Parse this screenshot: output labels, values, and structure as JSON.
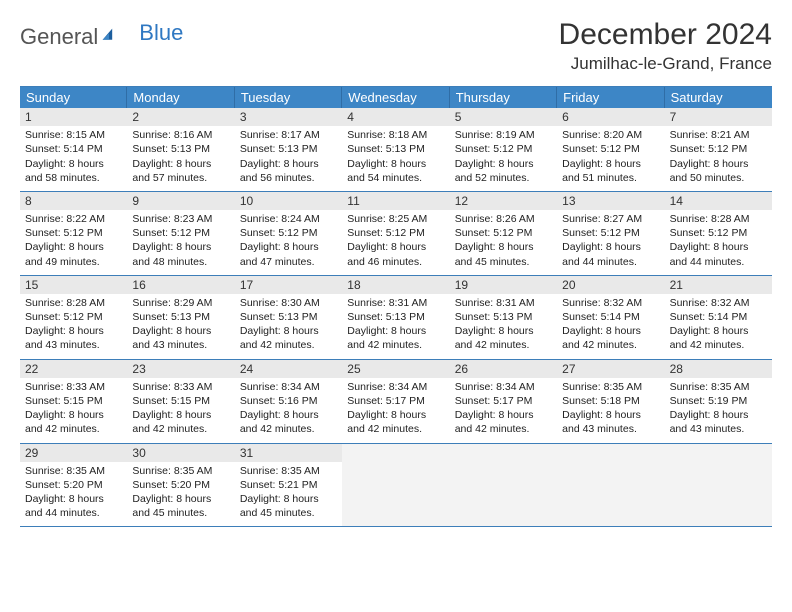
{
  "brand": {
    "part1": "General",
    "part2": "Blue"
  },
  "title": "December 2024",
  "location": "Jumilhac-le-Grand, France",
  "colors": {
    "header_bg": "#3d86c6",
    "border": "#3d7eb9",
    "daynum_bg": "#e9e9e9",
    "logo_blue": "#2f78c2",
    "text": "#222222"
  },
  "dow": [
    "Sunday",
    "Monday",
    "Tuesday",
    "Wednesday",
    "Thursday",
    "Friday",
    "Saturday"
  ],
  "weeks": [
    [
      {
        "n": "1",
        "sr": "8:15 AM",
        "ss": "5:14 PM",
        "dh": "8",
        "dm": "58"
      },
      {
        "n": "2",
        "sr": "8:16 AM",
        "ss": "5:13 PM",
        "dh": "8",
        "dm": "57"
      },
      {
        "n": "3",
        "sr": "8:17 AM",
        "ss": "5:13 PM",
        "dh": "8",
        "dm": "56"
      },
      {
        "n": "4",
        "sr": "8:18 AM",
        "ss": "5:13 PM",
        "dh": "8",
        "dm": "54"
      },
      {
        "n": "5",
        "sr": "8:19 AM",
        "ss": "5:12 PM",
        "dh": "8",
        "dm": "52"
      },
      {
        "n": "6",
        "sr": "8:20 AM",
        "ss": "5:12 PM",
        "dh": "8",
        "dm": "51"
      },
      {
        "n": "7",
        "sr": "8:21 AM",
        "ss": "5:12 PM",
        "dh": "8",
        "dm": "50"
      }
    ],
    [
      {
        "n": "8",
        "sr": "8:22 AM",
        "ss": "5:12 PM",
        "dh": "8",
        "dm": "49"
      },
      {
        "n": "9",
        "sr": "8:23 AM",
        "ss": "5:12 PM",
        "dh": "8",
        "dm": "48"
      },
      {
        "n": "10",
        "sr": "8:24 AM",
        "ss": "5:12 PM",
        "dh": "8",
        "dm": "47"
      },
      {
        "n": "11",
        "sr": "8:25 AM",
        "ss": "5:12 PM",
        "dh": "8",
        "dm": "46"
      },
      {
        "n": "12",
        "sr": "8:26 AM",
        "ss": "5:12 PM",
        "dh": "8",
        "dm": "45"
      },
      {
        "n": "13",
        "sr": "8:27 AM",
        "ss": "5:12 PM",
        "dh": "8",
        "dm": "44"
      },
      {
        "n": "14",
        "sr": "8:28 AM",
        "ss": "5:12 PM",
        "dh": "8",
        "dm": "44"
      }
    ],
    [
      {
        "n": "15",
        "sr": "8:28 AM",
        "ss": "5:12 PM",
        "dh": "8",
        "dm": "43"
      },
      {
        "n": "16",
        "sr": "8:29 AM",
        "ss": "5:13 PM",
        "dh": "8",
        "dm": "43"
      },
      {
        "n": "17",
        "sr": "8:30 AM",
        "ss": "5:13 PM",
        "dh": "8",
        "dm": "42"
      },
      {
        "n": "18",
        "sr": "8:31 AM",
        "ss": "5:13 PM",
        "dh": "8",
        "dm": "42"
      },
      {
        "n": "19",
        "sr": "8:31 AM",
        "ss": "5:13 PM",
        "dh": "8",
        "dm": "42"
      },
      {
        "n": "20",
        "sr": "8:32 AM",
        "ss": "5:14 PM",
        "dh": "8",
        "dm": "42"
      },
      {
        "n": "21",
        "sr": "8:32 AM",
        "ss": "5:14 PM",
        "dh": "8",
        "dm": "42"
      }
    ],
    [
      {
        "n": "22",
        "sr": "8:33 AM",
        "ss": "5:15 PM",
        "dh": "8",
        "dm": "42"
      },
      {
        "n": "23",
        "sr": "8:33 AM",
        "ss": "5:15 PM",
        "dh": "8",
        "dm": "42"
      },
      {
        "n": "24",
        "sr": "8:34 AM",
        "ss": "5:16 PM",
        "dh": "8",
        "dm": "42"
      },
      {
        "n": "25",
        "sr": "8:34 AM",
        "ss": "5:17 PM",
        "dh": "8",
        "dm": "42"
      },
      {
        "n": "26",
        "sr": "8:34 AM",
        "ss": "5:17 PM",
        "dh": "8",
        "dm": "42"
      },
      {
        "n": "27",
        "sr": "8:35 AM",
        "ss": "5:18 PM",
        "dh": "8",
        "dm": "43"
      },
      {
        "n": "28",
        "sr": "8:35 AM",
        "ss": "5:19 PM",
        "dh": "8",
        "dm": "43"
      }
    ],
    [
      {
        "n": "29",
        "sr": "8:35 AM",
        "ss": "5:20 PM",
        "dh": "8",
        "dm": "44"
      },
      {
        "n": "30",
        "sr": "8:35 AM",
        "ss": "5:20 PM",
        "dh": "8",
        "dm": "45"
      },
      {
        "n": "31",
        "sr": "8:35 AM",
        "ss": "5:21 PM",
        "dh": "8",
        "dm": "45"
      },
      null,
      null,
      null,
      null
    ]
  ],
  "labels": {
    "sunrise": "Sunrise:",
    "sunset": "Sunset:",
    "daylight_prefix": "Daylight:",
    "hours_word": "hours",
    "and_word": "and",
    "minutes_word": "minutes."
  }
}
